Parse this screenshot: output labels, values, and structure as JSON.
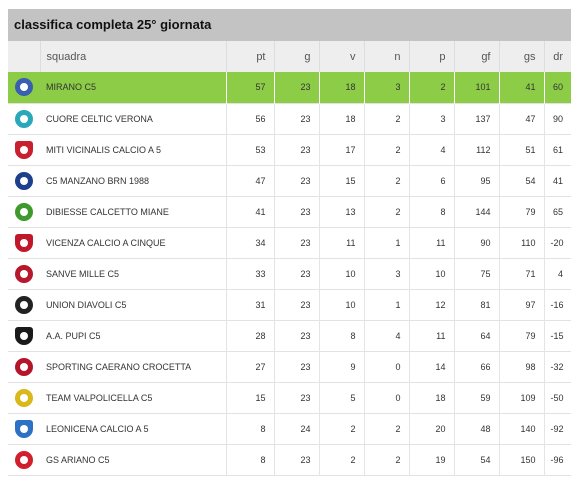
{
  "header": {
    "title": "classifica completa 25° giornata"
  },
  "columns": {
    "team": "squadra",
    "pt": "pt",
    "g": "g",
    "v": "v",
    "n": "n",
    "p": "p",
    "gf": "gf",
    "gs": "gs",
    "dr": "dr"
  },
  "highlight_color": "#8ccc47",
  "rows": [
    {
      "team": "MIRANO C5",
      "pt": "57",
      "g": "23",
      "v": "18",
      "n": "3",
      "p": "2",
      "gf": "101",
      "gs": "41",
      "dr": "60",
      "logo_icon": "mirano-c5-logo-icon",
      "logo_color": "#3a5fb0"
    },
    {
      "team": "CUORE CELTIC VERONA",
      "pt": "56",
      "g": "23",
      "v": "18",
      "n": "2",
      "p": "3",
      "gf": "137",
      "gs": "47",
      "dr": "90",
      "logo_icon": "cuore-celtic-verona-logo-icon",
      "logo_color": "#2aa7b8"
    },
    {
      "team": "MITI VICINALIS CALCIO A 5",
      "pt": "53",
      "g": "23",
      "v": "17",
      "n": "2",
      "p": "4",
      "gf": "112",
      "gs": "51",
      "dr": "61",
      "logo_icon": "miti-vicinalis-logo-icon",
      "logo_color": "#c8202f"
    },
    {
      "team": "C5 MANZANO BRN 1988",
      "pt": "47",
      "g": "23",
      "v": "15",
      "n": "2",
      "p": "6",
      "gf": "95",
      "gs": "54",
      "dr": "41",
      "logo_icon": "c5-manzano-logo-icon",
      "logo_color": "#1d3f8c"
    },
    {
      "team": "DIBIESSE CALCETTO MIANE",
      "pt": "41",
      "g": "23",
      "v": "13",
      "n": "2",
      "p": "8",
      "gf": "144",
      "gs": "79",
      "dr": "65",
      "logo_icon": "dibiesse-miane-logo-icon",
      "logo_color": "#3f9a2e"
    },
    {
      "team": "VICENZA CALCIO A CINQUE",
      "pt": "34",
      "g": "23",
      "v": "11",
      "n": "1",
      "p": "11",
      "gf": "90",
      "gs": "110",
      "dr": "-20",
      "logo_icon": "vicenza-c5-logo-icon",
      "logo_color": "#c0182a"
    },
    {
      "team": "SANVE MILLE C5",
      "pt": "33",
      "g": "23",
      "v": "10",
      "n": "3",
      "p": "10",
      "gf": "75",
      "gs": "71",
      "dr": "4",
      "logo_icon": "sanve-mille-logo-icon",
      "logo_color": "#b5192b"
    },
    {
      "team": "UNION DIAVOLI C5",
      "pt": "31",
      "g": "23",
      "v": "10",
      "n": "1",
      "p": "12",
      "gf": "81",
      "gs": "97",
      "dr": "-16",
      "logo_icon": "union-diavoli-logo-icon",
      "logo_color": "#222222"
    },
    {
      "team": "A.A. PUPI C5",
      "pt": "28",
      "g": "23",
      "v": "8",
      "n": "4",
      "p": "11",
      "gf": "64",
      "gs": "79",
      "dr": "-15",
      "logo_icon": "aa-pupi-logo-icon",
      "logo_color": "#1a1a1a"
    },
    {
      "team": "SPORTING CAERANO CROCETTA",
      "pt": "27",
      "g": "23",
      "v": "9",
      "n": "0",
      "p": "14",
      "gf": "66",
      "gs": "98",
      "dr": "-32",
      "logo_icon": "sporting-caerano-logo-icon",
      "logo_color": "#b3162a"
    },
    {
      "team": "TEAM VALPOLICELLA C5",
      "pt": "15",
      "g": "23",
      "v": "5",
      "n": "0",
      "p": "18",
      "gf": "59",
      "gs": "109",
      "dr": "-50",
      "logo_icon": "team-valpolicella-logo-icon",
      "logo_color": "#d9b81a"
    },
    {
      "team": "LEONICENA CALCIO A 5",
      "pt": "8",
      "g": "24",
      "v": "2",
      "n": "2",
      "p": "20",
      "gf": "48",
      "gs": "140",
      "dr": "-92",
      "logo_icon": "leonicena-logo-icon",
      "logo_color": "#2b72c4"
    },
    {
      "team": "GS ARIANO C5",
      "pt": "8",
      "g": "23",
      "v": "2",
      "n": "2",
      "p": "19",
      "gf": "54",
      "gs": "150",
      "dr": "-96",
      "logo_icon": "gs-ariano-logo-icon",
      "logo_color": "#d11f2e"
    }
  ]
}
